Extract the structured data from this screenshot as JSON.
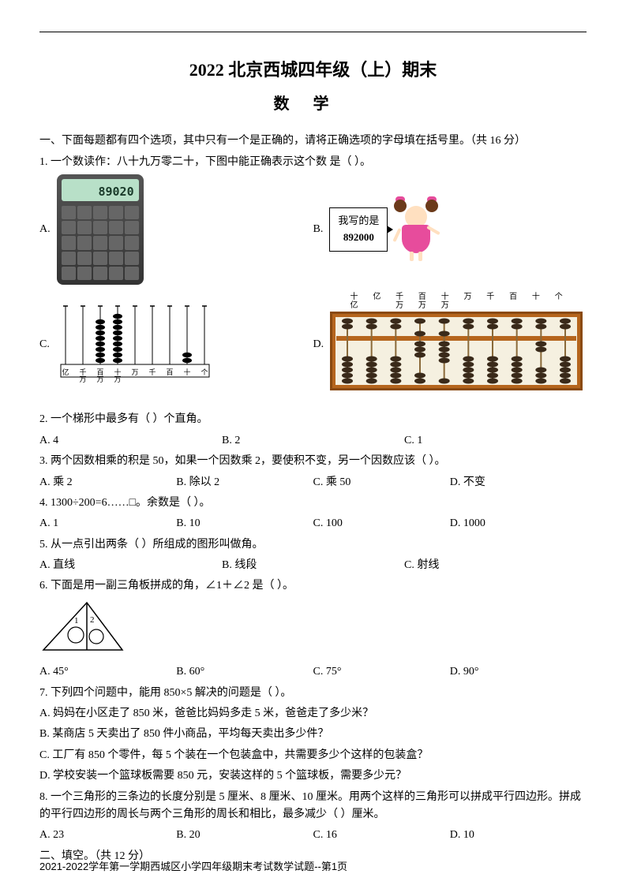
{
  "title": "2022 北京西城四年级（上）期末",
  "subject": "数学",
  "section1": "一、下面每题都有四个选项，其中只有一个是正确的，请将正确选项的字母填在括号里。（共 16 分）",
  "q1": {
    "text": "1. 一个数读作：八十九万零二十，下图中能正确表示这个数   是（    ）。",
    "optA": "A.",
    "calc_display": "89020",
    "optB": "B.",
    "speech_line1": "我写的是",
    "speech_line2": "892000",
    "optC": "C.",
    "c_labels": [
      "亿",
      "千万",
      "百万",
      "十万",
      "万",
      "千",
      "百",
      "十",
      "个"
    ],
    "c_beads": [
      0,
      0,
      8,
      9,
      0,
      0,
      0,
      2,
      0
    ],
    "optD": "D.",
    "d_labels": [
      "十亿",
      "亿",
      "千万",
      "百万",
      "十万",
      "万",
      "千",
      "百",
      "十",
      "个"
    ],
    "d_upper": [
      0,
      0,
      0,
      1,
      1,
      0,
      0,
      0,
      0,
      0
    ],
    "d_lower": [
      0,
      0,
      0,
      3,
      4,
      0,
      0,
      0,
      2,
      0
    ]
  },
  "q2": {
    "text": "2. 一个梯形中最多有（    ）个直角。",
    "A": "A. 4",
    "B": "B. 2",
    "C": "C. 1"
  },
  "q3": {
    "text": "3. 两个因数相乘的积是 50，如果一个因数乘 2，要使积不变，另一个因数应该（    ）。",
    "A": "A. 乘 2",
    "B": "B. 除以 2",
    "C": "C. 乘 50",
    "D": "D. 不变"
  },
  "q4": {
    "text": "4. 1300÷200=6……□。余数是（    ）。",
    "A": "A. 1",
    "B": "B. 10",
    "C": "C. 100",
    "D": "D. 1000"
  },
  "q5": {
    "text": "5. 从一点引出两条（        ）所组成的图形叫做角。",
    "A": "A. 直线",
    "B": "B. 线段",
    "C": "C. 射线"
  },
  "q6": {
    "text": "6. 下面是用一副三角板拼成的角，∠1＋∠2 是（    ）。",
    "A": "A. 45°",
    "B": "B. 60°",
    "C": "C. 75°",
    "D": "D. 90°"
  },
  "q7": {
    "text": "7. 下列四个问题中，能用 850×5 解决的问题是（    ）。",
    "A": "A. 妈妈在小区走了 850 米，爸爸比妈妈多走 5 米，爸爸走了多少米？",
    "B": "B. 某商店 5 天卖出了 850 件小商品，平均每天卖出多少件？",
    "C": "C. 工厂有 850 个零件，每 5 个装在一个包装盒中，共需要多少个这样的包装盒？",
    "D": "D. 学校安装一个篮球板需要 850 元，安装这样的 5 个篮球板，需要多少元？"
  },
  "q8": {
    "text": "8. 一个三角形的三条边的长度分别是 5 厘米、8 厘米、10 厘米。用两个这样的三角形可以拼成平行四边形。拼成的平行四边形的周长与两个三角形的周长和相比，最多减少（    ）厘米。",
    "A": "A. 23",
    "B": "B. 20",
    "C": "C. 16",
    "D": "D. 10"
  },
  "section2": "二、填空。（共 12 分）",
  "footer": "2021-2022学年第一学期西城区小学四年级期末考试数学试题--第1页",
  "colors": {
    "abacus_frame": "#b5651d",
    "abacus_frame_dark": "#8a4a10",
    "abacus_bead": "#3a2a1a",
    "abacus_rod": "#8a6a3a"
  }
}
